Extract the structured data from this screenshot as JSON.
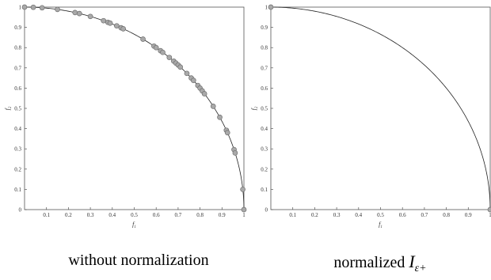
{
  "chart_data": [
    {
      "type": "scatter",
      "xlabel": "f1",
      "ylabel": "f2",
      "xlim": [
        0,
        1
      ],
      "ylim": [
        0,
        1
      ],
      "x_ticks": [
        "0.1",
        "0.2",
        "0.3",
        "0.4",
        "0.5",
        "0.6",
        "0.7",
        "0.8",
        "0.9",
        "1"
      ],
      "y_ticks": [
        "0",
        "0.1",
        "0.2",
        "0.3",
        "0.4",
        "0.5",
        "0.6",
        "0.7",
        "0.8",
        "0.9",
        "1"
      ],
      "grid": false,
      "front_curve": "quarter circle f1^2 + f2^2 = 1",
      "points_f1": [
        0.0,
        0.04,
        0.08,
        0.15,
        0.23,
        0.25,
        0.3,
        0.36,
        0.38,
        0.39,
        0.42,
        0.44,
        0.45,
        0.54,
        0.59,
        0.6,
        0.62,
        0.63,
        0.66,
        0.68,
        0.69,
        0.7,
        0.71,
        0.74,
        0.76,
        0.77,
        0.79,
        0.8,
        0.81,
        0.82,
        0.86,
        0.89,
        0.92,
        0.925,
        0.955,
        0.96,
        0.995,
        1.0
      ],
      "caption": "without normalization"
    },
    {
      "type": "scatter",
      "xlabel": "f1",
      "ylabel": "f2",
      "xlim": [
        0,
        1
      ],
      "ylim": [
        0,
        1
      ],
      "x_ticks": [
        "0.1",
        "0.2",
        "0.3",
        "0.4",
        "0.5",
        "0.6",
        "0.7",
        "0.8",
        "0.9",
        "1"
      ],
      "y_ticks": [
        "0",
        "0.1",
        "0.2",
        "0.3",
        "0.4",
        "0.5",
        "0.6",
        "0.7",
        "0.8",
        "0.9",
        "1"
      ],
      "grid": false,
      "front_curve": "quarter circle f1^2 + f2^2 = 1",
      "points": [
        [
          0.0,
          1.0
        ],
        [
          1.0,
          0.0
        ]
      ],
      "caption_prefix": "normalized",
      "caption_symbol": "I",
      "caption_subscript": "ε+"
    }
  ],
  "colors": {
    "point_fill": "#a9a9a9",
    "point_stroke": "#6f6f6f",
    "curve": "#222222",
    "axis": "#555555"
  }
}
